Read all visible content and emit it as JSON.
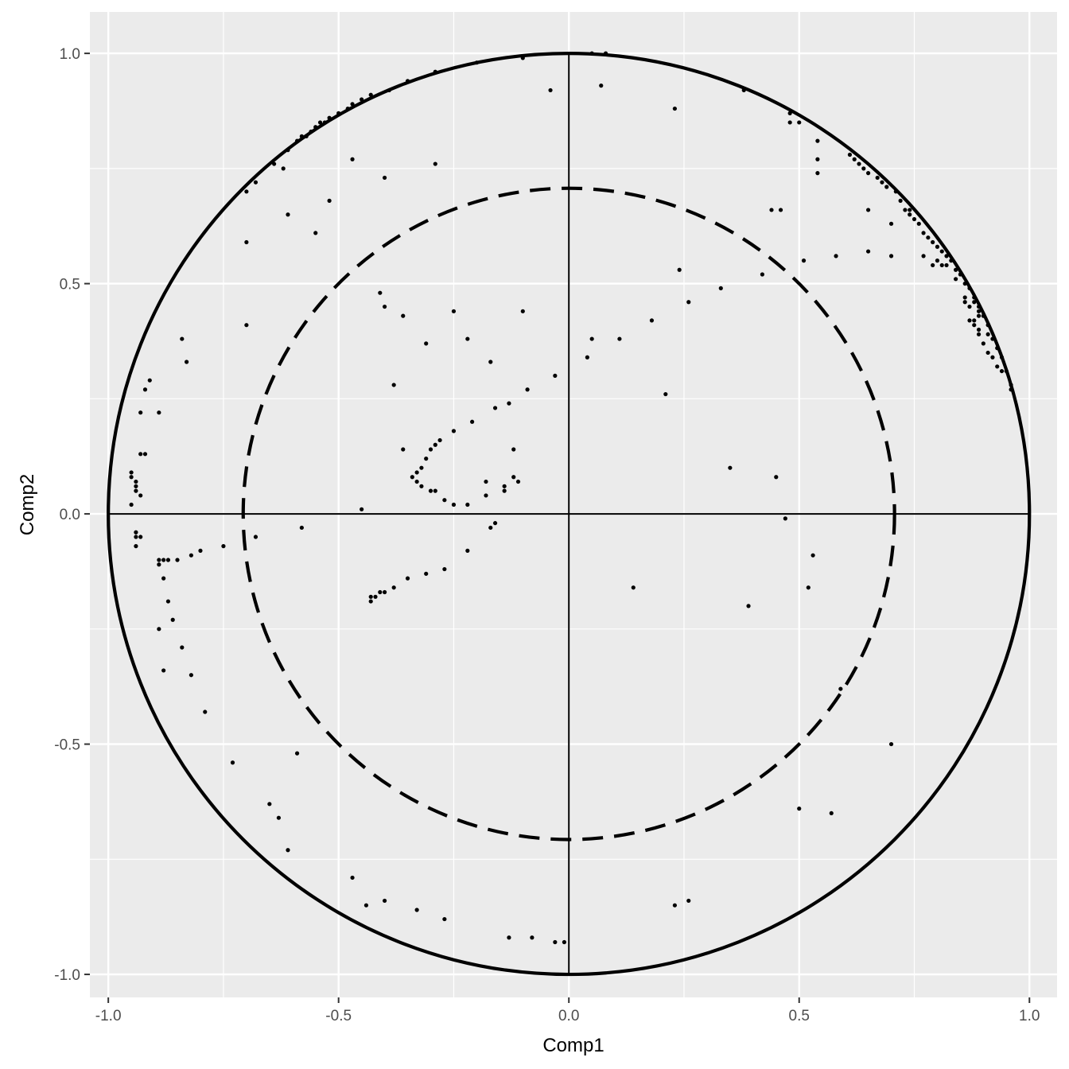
{
  "chart_data": {
    "type": "scatter",
    "title": "",
    "xlabel": "Comp1",
    "ylabel": "Comp2",
    "xlim": [
      -1.04,
      1.06
    ],
    "ylim": [
      -1.05,
      1.09
    ],
    "x_ticks": [
      -1.0,
      -0.5,
      0.0,
      0.5,
      1.0
    ],
    "x_tick_labels": [
      "-1.0",
      "-0.5",
      "0.0",
      "0.5",
      "1.0"
    ],
    "y_ticks": [
      -1.0,
      -0.5,
      0.0,
      0.5,
      1.0
    ],
    "y_tick_labels": [
      "-1.0",
      "-0.5",
      "0.0",
      "0.5",
      "1.0"
    ],
    "minor_ticks": [
      -0.75,
      -0.25,
      0.25,
      0.75
    ],
    "grid": true,
    "legend": "none",
    "reference_circles": [
      {
        "radius": 1.0,
        "style": "solid"
      },
      {
        "radius": 0.7071,
        "style": "dashed"
      }
    ],
    "reference_lines": [
      {
        "orientation": "horizontal",
        "value": 0.0
      },
      {
        "orientation": "vertical",
        "value": 0.0
      }
    ],
    "colors": {
      "panel": "#ebebeb",
      "grid": "#ffffff",
      "points": "#000000",
      "circles": "#000000",
      "tick_text": "#4d4d4d",
      "title_text": "#000000"
    },
    "points": [
      [
        -0.7,
        0.7
      ],
      [
        -0.68,
        0.72
      ],
      [
        -0.64,
        0.76
      ],
      [
        -0.61,
        0.79
      ],
      [
        -0.59,
        0.81
      ],
      [
        -0.58,
        0.82
      ],
      [
        -0.57,
        0.82
      ],
      [
        -0.56,
        0.83
      ],
      [
        -0.55,
        0.84
      ],
      [
        -0.54,
        0.85
      ],
      [
        -0.53,
        0.85
      ],
      [
        -0.52,
        0.86
      ],
      [
        -0.5,
        0.87
      ],
      [
        -0.48,
        0.88
      ],
      [
        -0.47,
        0.89
      ],
      [
        -0.45,
        0.9
      ],
      [
        -0.43,
        0.91
      ],
      [
        -0.39,
        0.92
      ],
      [
        -0.35,
        0.94
      ],
      [
        -0.29,
        0.96
      ],
      [
        -0.2,
        0.98
      ],
      [
        -0.1,
        0.99
      ],
      [
        0.05,
        1.0
      ],
      [
        0.08,
        1.0
      ],
      [
        -0.47,
        0.77
      ],
      [
        -0.4,
        0.73
      ],
      [
        -0.29,
        0.76
      ],
      [
        -0.62,
        0.75
      ],
      [
        -0.55,
        0.61
      ],
      [
        -0.61,
        0.65
      ],
      [
        -0.52,
        0.68
      ],
      [
        -0.7,
        0.59
      ],
      [
        -0.7,
        0.41
      ],
      [
        -0.84,
        0.38
      ],
      [
        -0.83,
        0.33
      ],
      [
        -0.91,
        0.29
      ],
      [
        -0.92,
        0.27
      ],
      [
        -0.93,
        0.22
      ],
      [
        -0.89,
        0.22
      ],
      [
        -0.93,
        0.13
      ],
      [
        -0.92,
        0.13
      ],
      [
        -0.95,
        0.09
      ],
      [
        -0.95,
        0.08
      ],
      [
        -0.94,
        0.07
      ],
      [
        -0.94,
        0.06
      ],
      [
        -0.94,
        0.05
      ],
      [
        -0.93,
        0.04
      ],
      [
        -0.95,
        0.02
      ],
      [
        -0.94,
        -0.04
      ],
      [
        -0.94,
        -0.05
      ],
      [
        -0.93,
        -0.05
      ],
      [
        -0.94,
        -0.07
      ],
      [
        -0.89,
        -0.1
      ],
      [
        -0.88,
        -0.1
      ],
      [
        -0.87,
        -0.1
      ],
      [
        -0.85,
        -0.1
      ],
      [
        -0.82,
        -0.09
      ],
      [
        -0.8,
        -0.08
      ],
      [
        -0.75,
        -0.07
      ],
      [
        -0.68,
        -0.05
      ],
      [
        -0.58,
        -0.03
      ],
      [
        -0.89,
        -0.11
      ],
      [
        -0.88,
        -0.14
      ],
      [
        -0.87,
        -0.19
      ],
      [
        -0.86,
        -0.23
      ],
      [
        -0.89,
        -0.25
      ],
      [
        -0.84,
        -0.29
      ],
      [
        -0.88,
        -0.34
      ],
      [
        -0.82,
        -0.35
      ],
      [
        -0.79,
        -0.43
      ],
      [
        -0.73,
        -0.54
      ],
      [
        -0.59,
        -0.52
      ],
      [
        -0.65,
        -0.63
      ],
      [
        -0.63,
        -0.66
      ],
      [
        -0.61,
        -0.73
      ],
      [
        -0.47,
        -0.79
      ],
      [
        -0.44,
        -0.85
      ],
      [
        -0.4,
        -0.84
      ],
      [
        -0.33,
        -0.86
      ],
      [
        -0.27,
        -0.88
      ],
      [
        -0.13,
        -0.92
      ],
      [
        -0.08,
        -0.92
      ],
      [
        -0.03,
        -0.93
      ],
      [
        -0.01,
        -0.93
      ],
      [
        0.23,
        -0.85
      ],
      [
        0.26,
        -0.84
      ],
      [
        0.5,
        -0.64
      ],
      [
        0.57,
        -0.65
      ],
      [
        0.7,
        -0.5
      ],
      [
        0.59,
        -0.38
      ],
      [
        -0.04,
        0.92
      ],
      [
        0.07,
        0.93
      ],
      [
        0.23,
        0.88
      ],
      [
        0.38,
        0.92
      ],
      [
        0.48,
        0.87
      ],
      [
        0.48,
        0.85
      ],
      [
        0.5,
        0.85
      ],
      [
        0.54,
        0.81
      ],
      [
        0.54,
        0.77
      ],
      [
        0.54,
        0.74
      ],
      [
        0.61,
        0.78
      ],
      [
        0.62,
        0.77
      ],
      [
        0.63,
        0.76
      ],
      [
        0.64,
        0.75
      ],
      [
        0.65,
        0.74
      ],
      [
        0.67,
        0.73
      ],
      [
        0.68,
        0.72
      ],
      [
        0.69,
        0.71
      ],
      [
        0.71,
        0.7
      ],
      [
        0.72,
        0.68
      ],
      [
        0.73,
        0.66
      ],
      [
        0.74,
        0.65
      ],
      [
        0.75,
        0.64
      ],
      [
        0.76,
        0.63
      ],
      [
        0.77,
        0.61
      ],
      [
        0.78,
        0.6
      ],
      [
        0.79,
        0.59
      ],
      [
        0.8,
        0.58
      ],
      [
        0.81,
        0.57
      ],
      [
        0.82,
        0.56
      ],
      [
        0.83,
        0.55
      ],
      [
        0.84,
        0.53
      ],
      [
        0.85,
        0.52
      ],
      [
        0.86,
        0.5
      ],
      [
        0.87,
        0.49
      ],
      [
        0.88,
        0.47
      ],
      [
        0.88,
        0.46
      ],
      [
        0.89,
        0.45
      ],
      [
        0.89,
        0.44
      ],
      [
        0.89,
        0.43
      ],
      [
        0.9,
        0.43
      ],
      [
        0.91,
        0.41
      ],
      [
        0.91,
        0.39
      ],
      [
        0.92,
        0.38
      ],
      [
        0.93,
        0.36
      ],
      [
        0.94,
        0.34
      ],
      [
        0.95,
        0.31
      ],
      [
        0.96,
        0.28
      ],
      [
        0.96,
        0.27
      ],
      [
        0.86,
        0.47
      ],
      [
        0.86,
        0.46
      ],
      [
        0.87,
        0.45
      ],
      [
        0.87,
        0.42
      ],
      [
        0.88,
        0.42
      ],
      [
        0.88,
        0.41
      ],
      [
        0.89,
        0.4
      ],
      [
        0.89,
        0.39
      ],
      [
        0.9,
        0.37
      ],
      [
        0.91,
        0.35
      ],
      [
        0.92,
        0.34
      ],
      [
        0.93,
        0.32
      ],
      [
        0.94,
        0.31
      ],
      [
        0.8,
        0.55
      ],
      [
        0.81,
        0.54
      ],
      [
        0.82,
        0.54
      ],
      [
        0.84,
        0.51
      ],
      [
        0.58,
        0.56
      ],
      [
        0.65,
        0.57
      ],
      [
        0.65,
        0.66
      ],
      [
        0.7,
        0.56
      ],
      [
        0.7,
        0.63
      ],
      [
        0.74,
        0.66
      ],
      [
        0.79,
        0.54
      ],
      [
        0.77,
        0.56
      ],
      [
        0.44,
        0.66
      ],
      [
        0.46,
        0.66
      ],
      [
        0.51,
        0.55
      ],
      [
        0.42,
        0.52
      ],
      [
        0.33,
        0.49
      ],
      [
        0.24,
        0.53
      ],
      [
        0.26,
        0.46
      ],
      [
        0.18,
        0.42
      ],
      [
        0.11,
        0.38
      ],
      [
        0.05,
        0.38
      ],
      [
        0.04,
        0.34
      ],
      [
        -0.03,
        0.3
      ],
      [
        -0.09,
        0.27
      ],
      [
        -0.13,
        0.24
      ],
      [
        -0.16,
        0.23
      ],
      [
        -0.21,
        0.2
      ],
      [
        -0.25,
        0.18
      ],
      [
        -0.28,
        0.16
      ],
      [
        -0.29,
        0.15
      ],
      [
        -0.3,
        0.14
      ],
      [
        -0.31,
        0.12
      ],
      [
        -0.32,
        0.1
      ],
      [
        -0.33,
        0.09
      ],
      [
        -0.34,
        0.08
      ],
      [
        -0.33,
        0.07
      ],
      [
        -0.32,
        0.06
      ],
      [
        -0.3,
        0.05
      ],
      [
        -0.29,
        0.05
      ],
      [
        -0.27,
        0.03
      ],
      [
        -0.25,
        0.02
      ],
      [
        -0.22,
        0.02
      ],
      [
        -0.41,
        0.48
      ],
      [
        -0.4,
        0.45
      ],
      [
        -0.36,
        0.43
      ],
      [
        -0.38,
        0.28
      ],
      [
        -0.36,
        0.14
      ],
      [
        -0.31,
        0.37
      ],
      [
        -0.25,
        0.44
      ],
      [
        -0.22,
        0.38
      ],
      [
        -0.17,
        0.33
      ],
      [
        -0.1,
        0.44
      ],
      [
        -0.12,
        0.14
      ],
      [
        -0.12,
        0.08
      ],
      [
        -0.11,
        0.07
      ],
      [
        -0.18,
        0.07
      ],
      [
        -0.18,
        0.04
      ],
      [
        -0.14,
        0.06
      ],
      [
        -0.14,
        0.05
      ],
      [
        -0.45,
        0.01
      ],
      [
        -0.16,
        -0.02
      ],
      [
        -0.17,
        -0.03
      ],
      [
        -0.22,
        -0.08
      ],
      [
        -0.27,
        -0.12
      ],
      [
        -0.31,
        -0.13
      ],
      [
        -0.35,
        -0.14
      ],
      [
        -0.38,
        -0.16
      ],
      [
        -0.4,
        -0.17
      ],
      [
        -0.41,
        -0.17
      ],
      [
        -0.42,
        -0.18
      ],
      [
        -0.43,
        -0.18
      ],
      [
        -0.43,
        -0.19
      ],
      [
        0.21,
        0.26
      ],
      [
        0.35,
        0.1
      ],
      [
        0.45,
        0.08
      ],
      [
        0.47,
        -0.01
      ],
      [
        0.53,
        -0.09
      ],
      [
        0.52,
        -0.16
      ],
      [
        0.39,
        -0.2
      ],
      [
        0.14,
        -0.16
      ]
    ]
  }
}
